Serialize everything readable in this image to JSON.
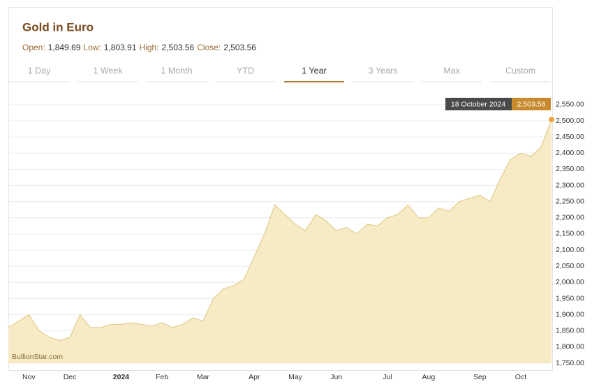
{
  "header": {
    "title": "Gold in Euro",
    "stats": [
      {
        "label": "Open:",
        "value": "1,849.69"
      },
      {
        "label": "Low:",
        "value": "1,803.91"
      },
      {
        "label": "High:",
        "value": "2,503.56"
      },
      {
        "label": "Close:",
        "value": "2,503.56"
      }
    ]
  },
  "tabs": {
    "items": [
      "1 Day",
      "1 Week",
      "1 Month",
      "YTD",
      "1 Year",
      "3 Years",
      "Max",
      "Custom"
    ],
    "active": 4
  },
  "chart_data": {
    "type": "area",
    "categories": [
      null,
      null,
      "Nov",
      null,
      null,
      null,
      "Dec",
      null,
      null,
      null,
      null,
      "2024",
      null,
      null,
      null,
      "Feb",
      null,
      null,
      null,
      "Mar",
      null,
      null,
      null,
      null,
      "Apr",
      null,
      null,
      null,
      "May",
      null,
      null,
      null,
      "Jun",
      null,
      null,
      null,
      null,
      "Jul",
      null,
      null,
      null,
      "Aug",
      null,
      null,
      null,
      null,
      "Sep",
      null,
      null,
      null,
      "Oct",
      null,
      null,
      null
    ],
    "values": [
      1860,
      1880,
      1900,
      1850,
      1830,
      1820,
      1830,
      1900,
      1860,
      1860,
      1870,
      1870,
      1875,
      1870,
      1865,
      1875,
      1860,
      1870,
      1890,
      1880,
      1950,
      1980,
      1990,
      2010,
      2080,
      2150,
      2240,
      2210,
      2180,
      2160,
      2210,
      2190,
      2160,
      2170,
      2150,
      2180,
      2175,
      2200,
      2210,
      2240,
      2200,
      2200,
      2230,
      2220,
      2250,
      2260,
      2270,
      2250,
      2320,
      2380,
      2400,
      2390,
      2420,
      2503.56
    ],
    "color": "#e2cd8f",
    "fill": "#f6ebc4",
    "ylim": [
      1750,
      2580
    ],
    "yticks": [
      {
        "value": 1750,
        "label": "1,750.00"
      },
      {
        "value": 1800,
        "label": "1,800.00"
      },
      {
        "value": 1850,
        "label": "1,850.00"
      },
      {
        "value": 1900,
        "label": "1,900.00"
      },
      {
        "value": 1950,
        "label": "1,950.00"
      },
      {
        "value": 2000,
        "label": "2,000.00"
      },
      {
        "value": 2050,
        "label": "2,050.00"
      },
      {
        "value": 2100,
        "label": "2,100.00"
      },
      {
        "value": 2150,
        "label": "2,150.00"
      },
      {
        "value": 2200,
        "label": "2,200.00"
      },
      {
        "value": 2250,
        "label": "2,250.00"
      },
      {
        "value": 2300,
        "label": "2,300.00"
      },
      {
        "value": 2350,
        "label": "2,350.00"
      },
      {
        "value": 2400,
        "label": "2,400.00"
      },
      {
        "value": 2450,
        "label": "2,450.00"
      },
      {
        "value": 2500,
        "label": "2,500.00"
      },
      {
        "value": 2550,
        "label": "2,550.00"
      }
    ],
    "grid": true,
    "tooltip": {
      "date": "18 October 2024",
      "value": 2503.56,
      "value_label": "2,503.56"
    },
    "watermark": "BullionStar.com"
  }
}
